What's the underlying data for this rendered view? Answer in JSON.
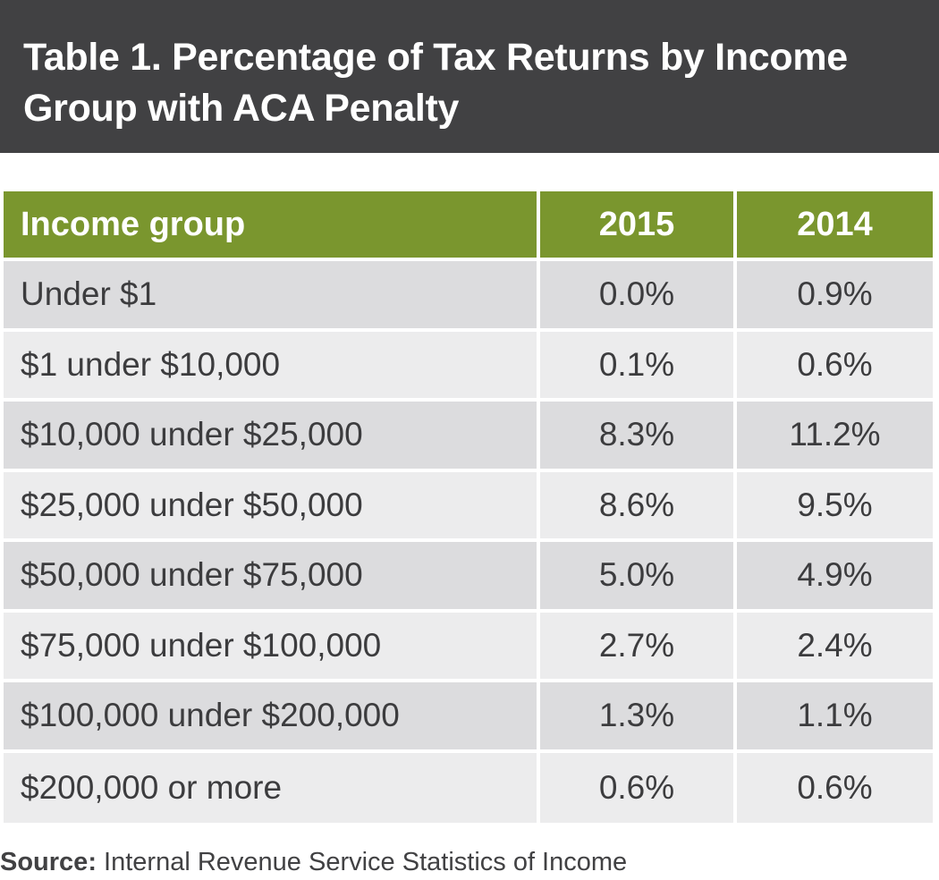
{
  "title": "Table 1. Percentage of Tax Returns by Income Group with ACA Penalty",
  "colors": {
    "title_bar": "#414143",
    "header_row": "#7a962e",
    "row_odd": "#dcdcde",
    "row_even": "#ececed",
    "text": "#3c3c3e"
  },
  "chart_data": {
    "type": "table",
    "title": "Table 1. Percentage of Tax Returns by Income Group with ACA Penalty",
    "columns": [
      "Income group",
      "2015",
      "2014"
    ],
    "rows": [
      [
        "Under $1",
        "0.0%",
        "0.9%"
      ],
      [
        "$1 under $10,000",
        "0.1%",
        "0.6%"
      ],
      [
        "$10,000 under $25,000",
        "8.3%",
        "11.2%"
      ],
      [
        "$25,000 under $50,000",
        "8.6%",
        "9.5%"
      ],
      [
        "$50,000 under $75,000",
        "5.0%",
        "4.9%"
      ],
      [
        "$75,000 under $100,000",
        "2.7%",
        "2.4%"
      ],
      [
        "$100,000 under $200,000",
        "1.3%",
        "1.1%"
      ],
      [
        "$200,000 or more",
        "0.6%",
        "0.6%"
      ]
    ]
  },
  "source": {
    "label": "Source:",
    "text": "Internal Revenue Service Statistics of Income"
  }
}
